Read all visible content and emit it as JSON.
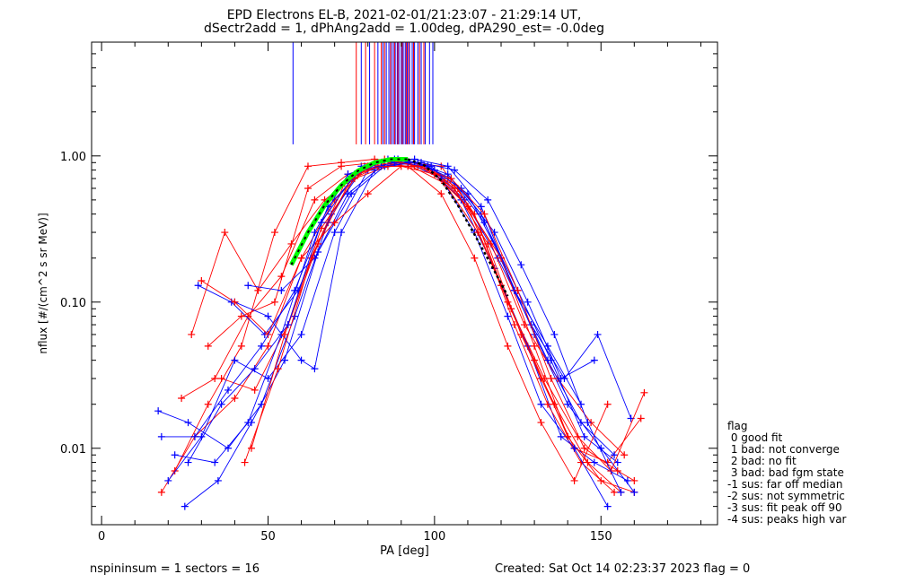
{
  "chart_data": {
    "type": "line",
    "title": "EPD Electrons EL-B, 2021-02-01/21:23:07 - 21:29:14 UT,",
    "subtitle": "dSectr2add = 1, dPhAng2add = 1.00deg, dPA290_est=  -0.0deg",
    "xlabel": "PA [deg]",
    "ylabel": "nflux [#/(cm^2 s sr MeV)]",
    "xlim": [
      -3,
      185
    ],
    "ylim": [
      0.003,
      6.0
    ],
    "yscale": "log",
    "x_ticks": [
      0,
      50,
      100,
      150
    ],
    "y_ticks": [
      0.01,
      0.1,
      1.0
    ],
    "y_tick_labels": [
      "0.01",
      "0.10",
      "1.00"
    ],
    "series": [
      {
        "color": "#ff0000",
        "x": [
          18,
          28,
          40,
          50,
          60,
          70,
          80,
          90,
          100,
          110,
          120,
          130,
          140,
          150,
          160
        ],
        "y": [
          0.005,
          0.012,
          0.022,
          0.05,
          0.2,
          0.5,
          0.85,
          0.9,
          0.8,
          0.45,
          0.13,
          0.04,
          0.012,
          0.006,
          0.005
        ]
      },
      {
        "color": "#0000ff",
        "x": [
          17,
          26,
          38,
          48,
          58,
          68,
          78,
          88,
          98,
          108,
          118,
          128,
          138,
          148,
          158
        ],
        "y": [
          0.018,
          0.015,
          0.01,
          0.02,
          0.08,
          0.35,
          0.85,
          0.95,
          0.85,
          0.5,
          0.17,
          0.05,
          0.012,
          0.008,
          0.006
        ]
      },
      {
        "color": "#ff0000",
        "x": [
          22,
          32,
          42,
          52,
          62,
          72,
          82,
          92,
          102,
          112,
          122,
          132,
          142,
          152,
          162
        ],
        "y": [
          0.007,
          0.02,
          0.05,
          0.3,
          0.85,
          0.9,
          0.95,
          0.9,
          0.85,
          0.4,
          0.1,
          0.03,
          0.01,
          0.008,
          0.016
        ]
      },
      {
        "color": "#0000ff",
        "x": [
          20,
          30,
          40,
          50,
          60,
          70,
          80,
          90,
          100,
          110,
          120,
          130,
          140,
          150,
          160
        ],
        "y": [
          0.006,
          0.012,
          0.04,
          0.03,
          0.06,
          0.3,
          0.8,
          0.9,
          0.8,
          0.55,
          0.2,
          0.06,
          0.02,
          0.01,
          0.005
        ]
      },
      {
        "color": "#ff0000",
        "x": [
          24,
          34,
          44,
          54,
          64,
          74,
          84,
          94,
          104,
          114,
          124,
          134,
          144,
          154
        ],
        "y": [
          0.022,
          0.03,
          0.08,
          0.15,
          0.5,
          0.75,
          0.85,
          0.85,
          0.7,
          0.3,
          0.07,
          0.02,
          0.008,
          0.005
        ]
      },
      {
        "color": "#0000ff",
        "x": [
          29,
          39,
          49,
          59,
          69,
          79,
          89,
          99,
          109,
          119,
          129,
          139,
          149,
          159
        ],
        "y": [
          0.13,
          0.1,
          0.06,
          0.12,
          0.4,
          0.85,
          0.95,
          0.85,
          0.5,
          0.2,
          0.07,
          0.03,
          0.06,
          0.016
        ]
      },
      {
        "color": "#ff0000",
        "x": [
          27,
          37,
          47,
          57,
          67,
          77,
          87,
          97,
          107,
          117,
          127,
          137,
          147,
          157
        ],
        "y": [
          0.06,
          0.3,
          0.12,
          0.25,
          0.5,
          0.75,
          0.9,
          0.85,
          0.6,
          0.25,
          0.07,
          0.03,
          0.015,
          0.009
        ]
      },
      {
        "color": "#0000ff",
        "x": [
          25,
          35,
          45,
          55,
          65,
          75,
          85,
          95,
          105,
          115,
          125,
          135,
          145,
          155
        ],
        "y": [
          0.004,
          0.006,
          0.015,
          0.04,
          0.22,
          0.55,
          0.85,
          0.9,
          0.7,
          0.35,
          0.12,
          0.04,
          0.012,
          0.008
        ]
      },
      {
        "color": "#ff0000",
        "x": [
          32,
          42,
          52,
          62,
          72,
          82,
          92,
          102,
          112,
          122,
          132,
          142,
          152
        ],
        "y": [
          0.05,
          0.08,
          0.1,
          0.6,
          0.85,
          0.9,
          0.85,
          0.55,
          0.2,
          0.05,
          0.015,
          0.006,
          0.02
        ]
      },
      {
        "color": "#0000ff",
        "x": [
          40,
          50,
          60,
          64,
          72,
          82,
          92,
          102,
          112,
          122,
          132,
          142,
          152
        ],
        "y": [
          0.1,
          0.08,
          0.04,
          0.035,
          0.3,
          0.8,
          0.9,
          0.7,
          0.3,
          0.08,
          0.02,
          0.01,
          0.004
        ]
      },
      {
        "color": "#ff0000",
        "x": [
          36,
          46,
          56,
          66,
          76,
          86,
          96,
          106,
          116,
          126,
          136,
          146,
          156
        ],
        "y": [
          0.03,
          0.025,
          0.07,
          0.32,
          0.7,
          0.85,
          0.85,
          0.6,
          0.25,
          0.06,
          0.02,
          0.008,
          0.005
        ]
      },
      {
        "color": "#0000ff",
        "x": [
          44,
          54,
          64,
          74,
          84,
          94,
          104,
          114,
          124,
          134,
          144,
          154
        ],
        "y": [
          0.13,
          0.12,
          0.2,
          0.55,
          0.85,
          0.9,
          0.75,
          0.4,
          0.12,
          0.04,
          0.015,
          0.009
        ]
      },
      {
        "color": "#ff0000",
        "x": [
          30,
          40,
          50,
          60,
          70,
          80,
          90,
          100,
          110,
          120,
          130,
          140
        ],
        "y": [
          0.14,
          0.1,
          0.06,
          0.2,
          0.35,
          0.55,
          0.85,
          0.75,
          0.45,
          0.2,
          0.05,
          0.012
        ]
      },
      {
        "color": "#0000ff",
        "x": [
          22,
          34,
          44,
          54,
          64,
          74,
          84,
          94,
          104,
          114,
          124,
          134,
          144
        ],
        "y": [
          0.009,
          0.008,
          0.015,
          0.06,
          0.3,
          0.75,
          0.9,
          0.95,
          0.85,
          0.45,
          0.12,
          0.05,
          0.02
        ]
      },
      {
        "color": "#ff0000",
        "x": [
          43,
          53,
          63,
          73,
          83,
          93,
          103,
          113,
          123,
          133,
          143,
          153,
          163
        ],
        "y": [
          0.008,
          0.035,
          0.2,
          0.65,
          0.85,
          0.85,
          0.65,
          0.3,
          0.09,
          0.03,
          0.012,
          0.007,
          0.024
        ]
      },
      {
        "color": "#0000ff",
        "x": [
          18,
          28,
          38,
          48,
          58,
          68,
          78,
          88,
          98,
          108,
          118,
          128,
          138,
          148
        ],
        "y": [
          0.012,
          0.012,
          0.025,
          0.05,
          0.12,
          0.45,
          0.8,
          0.9,
          0.85,
          0.6,
          0.3,
          0.1,
          0.03,
          0.04
        ]
      },
      {
        "color": "#ff0000",
        "x": [
          45,
          55,
          65,
          75,
          85,
          95,
          105,
          115,
          125,
          135,
          145,
          155,
          160
        ],
        "y": [
          0.01,
          0.06,
          0.25,
          0.7,
          0.95,
          0.85,
          0.7,
          0.4,
          0.12,
          0.03,
          0.01,
          0.007,
          0.006
        ]
      },
      {
        "color": "#0000ff",
        "x": [
          26,
          36,
          46,
          56,
          66,
          76,
          86,
          96,
          106,
          116,
          126,
          136,
          146,
          156
        ],
        "y": [
          0.008,
          0.02,
          0.035,
          0.07,
          0.35,
          0.75,
          0.95,
          0.9,
          0.8,
          0.5,
          0.18,
          0.06,
          0.015,
          0.005
        ]
      }
    ],
    "fit_curve": {
      "color": "#00ff00",
      "x": [
        57,
        62,
        67,
        72,
        77,
        82,
        87,
        92
      ],
      "y": [
        0.18,
        0.3,
        0.46,
        0.63,
        0.79,
        0.9,
        0.95,
        0.95
      ]
    },
    "fit_curve_model": {
      "color": "#000000",
      "x": [
        92,
        97,
        102,
        107,
        112,
        117,
        122
      ],
      "y": [
        0.95,
        0.86,
        0.68,
        0.46,
        0.29,
        0.18,
        0.11
      ]
    },
    "spikes": {
      "blue_x": [
        57.5,
        78,
        80.5,
        83,
        84.5,
        85.5,
        86.3,
        87,
        87.6,
        88.2,
        88.8,
        89.3,
        90,
        90.6,
        91.2,
        91.8,
        92.5,
        93.3,
        94,
        95,
        96,
        97.2,
        98.5,
        99.5
      ],
      "red_x": [
        76.5,
        79.3,
        82,
        84,
        85,
        86.8,
        88,
        89,
        90.3,
        91.5,
        92.2,
        93.7,
        95.5,
        96.8
      ],
      "y_from": 1.2
    }
  },
  "flag_legend": {
    "title": "flag",
    "items": [
      " 0 good fit",
      " 1 bad: not converge",
      " 2 bad: no fit",
      " 3 bad: bad fgm state",
      "-1 sus: far off median",
      "-2 sus: not symmetric",
      "-3 sus: fit peak off 90",
      "-4 sus: peaks high var"
    ]
  },
  "footer": {
    "left": "nspininsum =  1  sectors = 16",
    "right": "Created: Sat Oct 14 02:23:37 2023   flag = 0"
  }
}
